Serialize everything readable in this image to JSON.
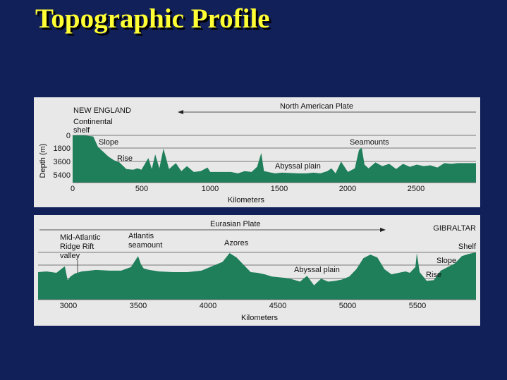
{
  "title": "Topographic Profile",
  "colors": {
    "background": "#12205a",
    "title": "#ffff33",
    "panel": "#e8e8e8",
    "terrain": "#1f7f5a",
    "gridline": "#555555"
  },
  "top_panel": {
    "region_label": "NEW ENGLAND",
    "plate_label": "North American Plate",
    "plate_arrow_direction": "left",
    "ylabel": "Depth (m)",
    "y_ticks": [
      "0",
      "1800",
      "3600",
      "5400"
    ],
    "x_ticks": [
      "0",
      "500",
      "1000",
      "1500",
      "2000",
      "2500"
    ],
    "xlabel": "Kilometers",
    "features": [
      "Continental shelf",
      "Slope",
      "Rise",
      "Abyssal plain",
      "Seamounts"
    ]
  },
  "bottom_panel": {
    "region_label": "GIBRALTAR",
    "plate_label": "Eurasian Plate",
    "plate_arrow_direction": "right",
    "x_ticks": [
      "3000",
      "3500",
      "4000",
      "4500",
      "5000",
      "5500"
    ],
    "xlabel": "Kilometers",
    "features": {
      "ridge": [
        "Mid-Atlantic",
        "Ridge Rift",
        "valley"
      ],
      "atlantis": [
        "Atlantis",
        "seamount"
      ],
      "azores": "Azores",
      "abyssal": "Abyssal plain",
      "slope": "Slope",
      "rise": "Rise",
      "shelf": "Shelf"
    }
  },
  "chart_data": [
    {
      "type": "area",
      "title": "",
      "xlabel": "Kilometers",
      "ylabel": "Depth (m)",
      "xlim": [
        0,
        2930
      ],
      "ylim": [
        0,
        5400
      ],
      "y_inverted": true,
      "grid": "horizontal",
      "x": [
        0,
        80,
        150,
        185,
        220,
        260,
        300,
        340,
        390,
        440,
        470,
        500,
        550,
        575,
        600,
        630,
        660,
        700,
        750,
        790,
        830,
        880,
        930,
        980,
        1000,
        1050,
        1100,
        1150,
        1200,
        1250,
        1300,
        1340,
        1370,
        1390,
        1420,
        1470,
        1520,
        1580,
        1640,
        1700,
        1750,
        1800,
        1850,
        1880,
        1910,
        1950,
        2000,
        2050,
        2080,
        2100,
        2120,
        2150,
        2200,
        2250,
        2300,
        2350,
        2400,
        2450,
        2500,
        2550,
        2600,
        2650,
        2700,
        2750,
        2800,
        2870,
        2930
      ],
      "values": [
        0,
        0,
        150,
        1600,
        2200,
        2900,
        3400,
        3700,
        4600,
        4700,
        4500,
        4700,
        3100,
        4600,
        2600,
        4500,
        1800,
        4600,
        3800,
        4900,
        4200,
        5000,
        4900,
        4400,
        5000,
        5000,
        5000,
        5000,
        5200,
        4900,
        5000,
        4300,
        2400,
        4900,
        5000,
        5200,
        5100,
        5150,
        5200,
        5200,
        5100,
        5200,
        4900,
        4500,
        5200,
        3600,
        5000,
        4500,
        2000,
        1700,
        4000,
        4500,
        3700,
        4200,
        3900,
        4600,
        3900,
        4300,
        4000,
        4200,
        4100,
        4400,
        3800,
        3900,
        3800,
        3800,
        3800
      ]
    },
    {
      "type": "area",
      "title": "",
      "xlabel": "Kilometers",
      "ylabel": "",
      "xlim": [
        2790,
        5900
      ],
      "ylim": [
        0,
        5400
      ],
      "y_inverted": true,
      "grid": "horizontal",
      "x": [
        2790,
        2850,
        2920,
        2980,
        3000,
        3020,
        3050,
        3100,
        3200,
        3300,
        3380,
        3450,
        3500,
        3520,
        3540,
        3580,
        3650,
        3750,
        3850,
        3950,
        4050,
        4100,
        4150,
        4200,
        4250,
        4300,
        4350,
        4400,
        4450,
        4500,
        4550,
        4600,
        4650,
        4700,
        4750,
        4800,
        4850,
        4900,
        4950,
        5000,
        5050,
        5100,
        5150,
        5200,
        5250,
        5300,
        5350,
        5400,
        5430,
        5470,
        5480,
        5500,
        5550,
        5600,
        5650,
        5700,
        5750,
        5800,
        5850,
        5900
      ],
      "values": [
        2700,
        2600,
        2800,
        1900,
        3800,
        3300,
        2900,
        2600,
        2400,
        2500,
        2500,
        2000,
        500,
        1600,
        2200,
        2400,
        2600,
        2700,
        2700,
        2500,
        1700,
        1300,
        100,
        700,
        1700,
        2700,
        2800,
        3000,
        3300,
        3400,
        3500,
        3700,
        4000,
        3200,
        4500,
        3600,
        4000,
        3900,
        3700,
        3300,
        2300,
        800,
        300,
        700,
        2300,
        3000,
        2800,
        2600,
        2800,
        2000,
        100,
        2700,
        3900,
        3800,
        2500,
        2000,
        1500,
        500,
        200,
        0
      ]
    }
  ]
}
